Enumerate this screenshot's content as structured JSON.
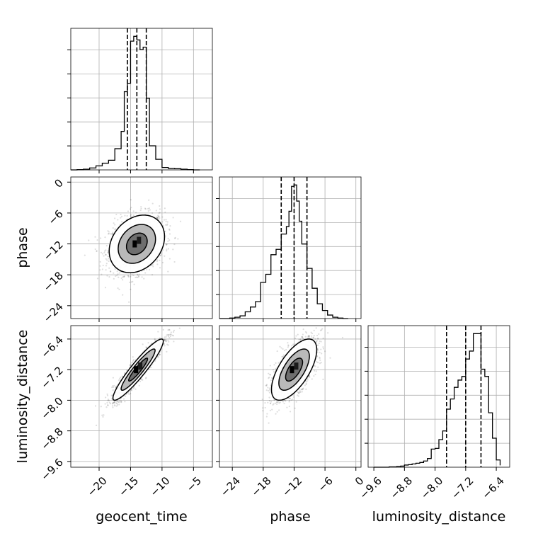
{
  "chart_data": {
    "type": "corner",
    "title": "",
    "parameters": [
      "geocent_time",
      "phase",
      "luminosity_distance"
    ],
    "grid": true,
    "axes": {
      "geocent_time": {
        "range": [
          -24.5,
          -2
        ],
        "ticks": [
          -20,
          -15,
          -10,
          -5
        ],
        "tick_labels": [
          "−20",
          "−15",
          "−10",
          "−5"
        ]
      },
      "phase": {
        "range": [
          -26.5,
          1
        ],
        "ticks": [
          -24,
          -18,
          -12,
          -6,
          0
        ],
        "tick_labels": [
          "−24",
          "−18",
          "−12",
          "−6",
          "0"
        ]
      },
      "luminosity_distance": {
        "range": [
          -9.75,
          -6.05
        ],
        "ticks": [
          -9.6,
          -8.8,
          -8.0,
          -7.2,
          -6.4
        ],
        "tick_labels": [
          "−9.6",
          "−8.8",
          "−8.0",
          "−7.2",
          "−6.4"
        ]
      }
    },
    "marginals": [
      {
        "parameter": "geocent_time",
        "quantiles": [
          -15.5,
          -14.0,
          -12.5
        ],
        "bin_edges": [
          -24.5,
          -23.5,
          -22.5,
          -21.5,
          -20.5,
          -19.5,
          -18.5,
          -17.5,
          -16.5,
          -16.0,
          -15.5,
          -15.0,
          -14.5,
          -14.0,
          -13.5,
          -13.0,
          -12.5,
          -12.0,
          -11.0,
          -10.0,
          -9.0,
          -8.0,
          -7.0,
          -6.0,
          -5.0,
          -4.0
        ],
        "counts": [
          0,
          1,
          3,
          8,
          17,
          28,
          40,
          88,
          160,
          325,
          360,
          535,
          555,
          540,
          500,
          510,
          298,
          100,
          44,
          10,
          6,
          5,
          3,
          1,
          0
        ]
      },
      {
        "parameter": "phase",
        "quantiles": [
          -14.5,
          -12.0,
          -9.5
        ],
        "bin_edges": [
          -26.5,
          -25.5,
          -24.5,
          -23.5,
          -22.5,
          -21.5,
          -20.5,
          -19.5,
          -18.5,
          -17.5,
          -16.5,
          -15.5,
          -14.5,
          -13.5,
          -13.0,
          -12.5,
          -12.0,
          -11.5,
          -11.0,
          -10.5,
          -9.5,
          -8.5,
          -7.5,
          -6.5,
          -5.5,
          -4.5,
          -3.5,
          -2.5,
          -1.5
        ],
        "counts": [
          0,
          0,
          2,
          5,
          10,
          25,
          43,
          63,
          135,
          165,
          238,
          258,
          315,
          343,
          400,
          493,
          498,
          438,
          363,
          278,
          187,
          113,
          55,
          30,
          13,
          5,
          2,
          0
        ]
      },
      {
        "parameter": "luminosity_distance",
        "quantiles": [
          -7.7,
          -7.2,
          -6.8
        ],
        "bin_edges": [
          -9.6,
          -9.5,
          -9.4,
          -9.3,
          -9.2,
          -9.1,
          -9.0,
          -8.9,
          -8.8,
          -8.7,
          -8.6,
          -8.5,
          -8.4,
          -8.3,
          -8.2,
          -8.1,
          -8.0,
          -7.9,
          -7.8,
          -7.7,
          -7.6,
          -7.5,
          -7.4,
          -7.3,
          -7.2,
          -7.1,
          -7.0,
          -6.9,
          -6.8,
          -6.7,
          -6.6,
          -6.5,
          -6.4,
          -6.3
        ],
        "counts": [
          0,
          0,
          0,
          0,
          1,
          1,
          2,
          3,
          6,
          7,
          9,
          11,
          13,
          17,
          24,
          50,
          52,
          76,
          100,
          160,
          188,
          220,
          240,
          250,
          298,
          320,
          368,
          368,
          270,
          250,
          150,
          80,
          20,
          5
        ]
      }
    ],
    "joints": [
      {
        "x": "geocent_time",
        "y": "phase",
        "center": [
          -14.0,
          -12.0
        ],
        "sigma": [
          2.2,
          2.8
        ],
        "correlation": 0.25
      },
      {
        "x": "geocent_time",
        "y": "luminosity_distance",
        "center": [
          -13.8,
          -7.2
        ],
        "sigma": [
          2.0,
          0.4
        ],
        "correlation": 0.93
      },
      {
        "x": "phase",
        "y": "luminosity_distance",
        "center": [
          -12.0,
          -7.2
        ],
        "sigma": [
          2.2,
          0.4
        ],
        "correlation": 0.65
      }
    ]
  }
}
